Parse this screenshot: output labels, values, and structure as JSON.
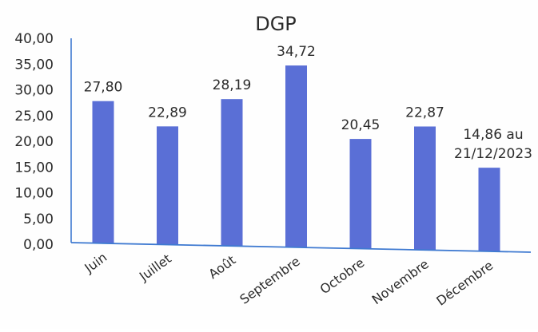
{
  "chart_data": {
    "type": "bar",
    "title": "DGP",
    "xlabel": "",
    "ylabel": "",
    "categories": [
      "Juin",
      "Juillet",
      "Août",
      "Septembre",
      "Octobre",
      "Novembre",
      "Décembre"
    ],
    "values": [
      27.8,
      22.89,
      28.19,
      34.72,
      20.45,
      22.87,
      14.86
    ],
    "data_labels": [
      "27,80",
      "22,89",
      "28,19",
      "34,72",
      "20,45",
      "22,87",
      "14,86 au 21/12/2023"
    ],
    "yticks": [
      "0,00",
      "5,00",
      "10,00",
      "15,00",
      "20,00",
      "25,00",
      "30,00",
      "35,00",
      "40,00"
    ],
    "ylim": [
      0,
      40
    ],
    "grid": false,
    "legend": "none",
    "bar_color": "#5a6fd6",
    "axis_color": "#3f7ad1"
  }
}
